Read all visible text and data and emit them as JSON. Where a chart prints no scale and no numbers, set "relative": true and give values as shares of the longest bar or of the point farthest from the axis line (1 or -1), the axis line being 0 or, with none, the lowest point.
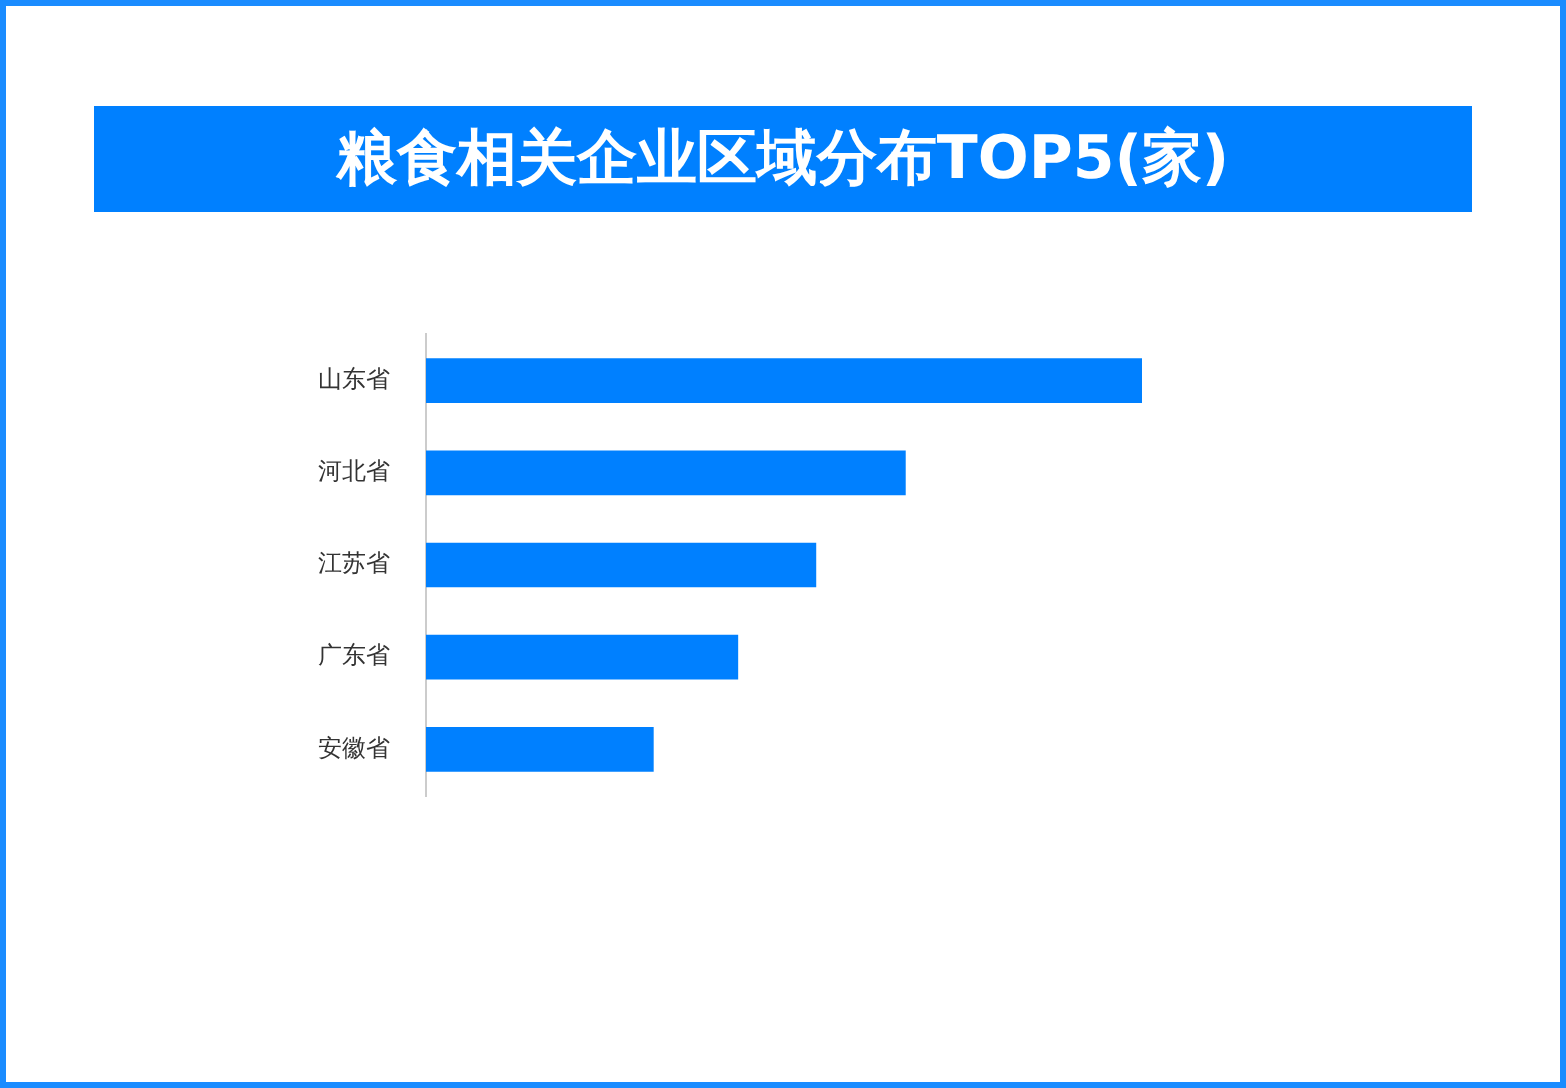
{
  "chart_data": {
    "type": "bar",
    "orientation": "horizontal",
    "relative": true,
    "title": "粮食相关企业区域分布TOP5(家)",
    "categories": [
      "山东省",
      "河北省",
      "江苏省",
      "广东省",
      "安徽省"
    ],
    "values": [
      1,
      0.67,
      0.545,
      0.436,
      0.318
    ],
    "color": "#0080ff",
    "legend": false
  }
}
